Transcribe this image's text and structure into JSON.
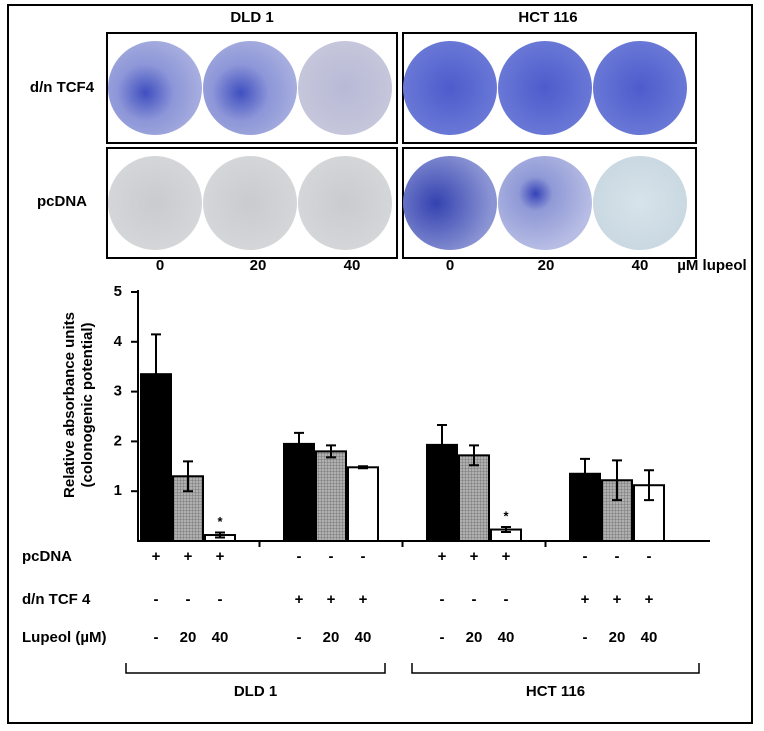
{
  "images": {
    "columns": [
      "DLD 1",
      "HCT 116"
    ],
    "rows": [
      "d/n TCF4",
      "pcDNA"
    ],
    "doses": [
      "0",
      "20",
      "40",
      "0",
      "20",
      "40"
    ],
    "unit": "µM lupeol"
  },
  "chart_data": {
    "type": "bar",
    "ylabel": [
      "Relative absorbance units",
      "(colonogenic potential)"
    ],
    "categories": [
      null,
      null,
      null,
      null
    ],
    "series": [
      {
        "color": "#000000",
        "values": [
          3.35,
          1.95,
          1.93,
          1.35
        ],
        "errors": [
          0.8,
          0.22,
          0.4,
          0.3
        ]
      },
      {
        "color": "#9a9a9a",
        "values": [
          1.3,
          1.8,
          1.72,
          1.22
        ],
        "errors": [
          0.3,
          0.12,
          0.2,
          0.4
        ]
      },
      {
        "color": "#ffffff",
        "values": [
          0.12,
          1.48,
          0.23,
          1.12
        ],
        "errors": [
          0.05,
          0.02,
          0.05,
          0.3
        ]
      }
    ],
    "annotations": [
      "*",
      "*"
    ],
    "ylim": [
      0,
      5
    ],
    "yticks": [
      1,
      2,
      3,
      4,
      5
    ],
    "conditions": [
      {
        "label": "pcDNA",
        "marks": [
          "+",
          "+",
          "+",
          "-",
          "-",
          "-",
          "+",
          "+",
          "+",
          "-",
          "-",
          "-"
        ]
      },
      {
        "label": "d/n TCF 4",
        "marks": [
          "-",
          "-",
          "-",
          "+",
          "+",
          "+",
          "-",
          "-",
          "-",
          "+",
          "+",
          "+"
        ]
      },
      {
        "label": "Lupeol (µM)",
        "marks": [
          "-",
          "20",
          "40",
          "-",
          "20",
          "40",
          "-",
          "20",
          "40",
          "-",
          "20",
          "40"
        ]
      }
    ],
    "group_labels": [
      "DLD 1",
      "HCT 116"
    ]
  }
}
